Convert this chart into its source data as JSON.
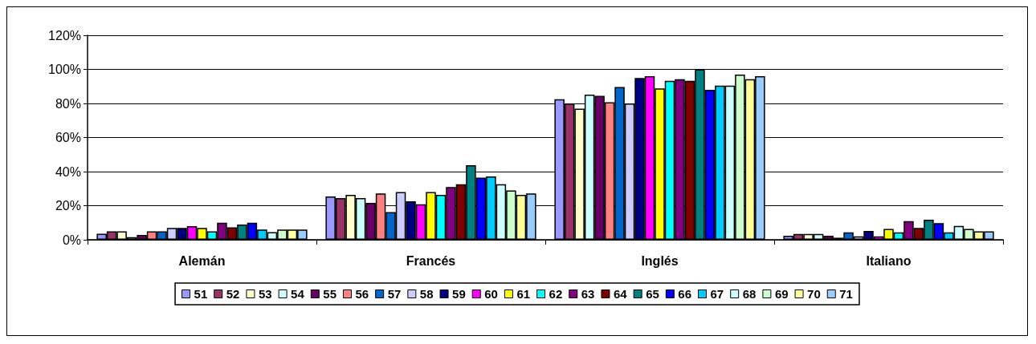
{
  "chart_data": {
    "type": "bar",
    "categories": [
      "Alemán",
      "Francés",
      "Inglés",
      "Italiano"
    ],
    "ylim": [
      0,
      120
    ],
    "yticks": [
      {
        "value": 0,
        "label": "0%"
      },
      {
        "value": 20,
        "label": "20%"
      },
      {
        "value": 40,
        "label": "40%"
      },
      {
        "value": 60,
        "label": "60%"
      },
      {
        "value": 80,
        "label": "80%"
      },
      {
        "value": 100,
        "label": "100%"
      },
      {
        "value": 120,
        "label": "120%"
      }
    ],
    "grid": "y",
    "legend": "bottom",
    "series": [
      {
        "name": "51",
        "color": "#9999ff",
        "values": [
          3.5,
          25.4,
          82.5,
          2.4
        ]
      },
      {
        "name": "52",
        "color": "#993366",
        "values": [
          5,
          24.5,
          80,
          3.4
        ]
      },
      {
        "name": "53",
        "color": "#ffffcc",
        "values": [
          5,
          26.3,
          77,
          3.4
        ]
      },
      {
        "name": "54",
        "color": "#ccffff",
        "values": [
          1.5,
          24.5,
          85.2,
          3.4
        ]
      },
      {
        "name": "55",
        "color": "#660066",
        "values": [
          2.8,
          21.7,
          84.5,
          2.4
        ]
      },
      {
        "name": "56",
        "color": "#ff8080",
        "values": [
          5,
          27.2,
          80.7,
          1.2
        ]
      },
      {
        "name": "57",
        "color": "#0066cc",
        "values": [
          5,
          16.2,
          89.7,
          4.3
        ]
      },
      {
        "name": "58",
        "color": "#ccccff",
        "values": [
          7,
          28,
          80,
          2
        ]
      },
      {
        "name": "59",
        "color": "#000080",
        "values": [
          7,
          22.6,
          95,
          5.2
        ]
      },
      {
        "name": "60",
        "color": "#ff00ff",
        "values": [
          8,
          20.8,
          96,
          2
        ]
      },
      {
        "name": "61",
        "color": "#ffff00",
        "values": [
          7,
          28,
          88.8,
          6.3
        ]
      },
      {
        "name": "62",
        "color": "#00ffff",
        "values": [
          5,
          26.3,
          93.3,
          4.3
        ]
      },
      {
        "name": "63",
        "color": "#800080",
        "values": [
          10,
          31,
          94.2,
          10.9
        ]
      },
      {
        "name": "64",
        "color": "#800000",
        "values": [
          7.3,
          32.6,
          93.3,
          7
        ]
      },
      {
        "name": "65",
        "color": "#008080",
        "values": [
          9,
          43.8,
          100,
          11.8
        ]
      },
      {
        "name": "66",
        "color": "#0000ff",
        "values": [
          10,
          36.5,
          88,
          9.8
        ]
      },
      {
        "name": "67",
        "color": "#00ccff",
        "values": [
          6,
          37.2,
          90.5,
          4.3
        ]
      },
      {
        "name": "68",
        "color": "#ccffff",
        "values": [
          4.5,
          32.6,
          90.5,
          8.1
        ]
      },
      {
        "name": "69",
        "color": "#ccffcc",
        "values": [
          6,
          29,
          96.9,
          6.3
        ]
      },
      {
        "name": "70",
        "color": "#ffff99",
        "values": [
          6,
          26.3,
          94.2,
          5
        ]
      },
      {
        "name": "71",
        "color": "#99ccff",
        "values": [
          6,
          27.2,
          96,
          5
        ]
      }
    ]
  }
}
